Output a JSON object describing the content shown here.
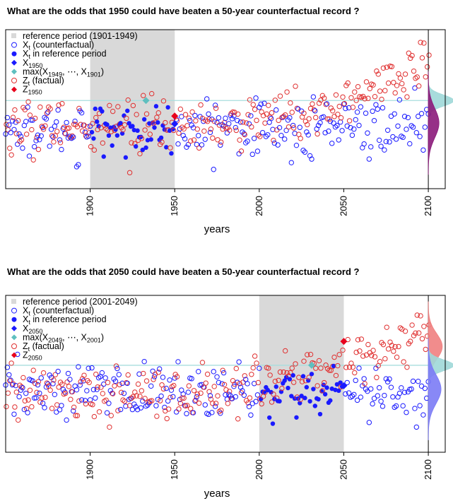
{
  "chart_data": [
    {
      "type": "scatter",
      "title": "What are the odds that 1950 could have beaten a 50-year counterfactual record ?",
      "xlabel": "years",
      "ylabel": "",
      "xlim": [
        1850,
        2110
      ],
      "ylim": [
        -3.2,
        6.0
      ],
      "x_ticks": [
        1900,
        1950,
        2000,
        2050,
        2100
      ],
      "reference_period": [
        1901,
        1949
      ],
      "event_year": 1950,
      "record_level": 1.9,
      "record_year": 1933,
      "x_event": 0.55,
      "z_event": 1.0,
      "legend_position": "top-left",
      "legend": {
        "ref": "reference period (1901-1949)",
        "xcf": "X",
        "xcf_sub": "t",
        "xcf_rest": " (counterfactual)",
        "xref": "X",
        "xref_sub": "t",
        "xref_rest": " in reference period",
        "xev": "X",
        "xev_sub": "1950",
        "mx_pre": "max(X",
        "mx_sub1": "1949",
        "mx_mid": ", ⋯, X",
        "mx_sub2": "1901",
        "mx_post": ")",
        "zf": "Z",
        "zf_sub": "t",
        "zf_rest": " (factual)",
        "zev": "Z",
        "zev_sub": "1950"
      },
      "densities": [
        {
          "name": "max",
          "color": "#9fd8d8",
          "mean": 1.9,
          "sd": 0.32,
          "scale": 1.0
        },
        {
          "name": "factual",
          "color": "#8b1a7a",
          "mean": 0.6,
          "sd": 0.85,
          "scale": 0.42
        }
      ],
      "colors": {
        "counterfactual": "#1a1aff",
        "factual": "#e03030",
        "event": "#e8001c",
        "record": "#5fbfbf",
        "band": "#d9d9d9"
      }
    },
    {
      "type": "scatter",
      "title": "What are the odds that 2050 could have beaten a 50-year counterfactual record ?",
      "xlabel": "years",
      "ylabel": "",
      "xlim": [
        1850,
        2110
      ],
      "ylim": [
        -3.2,
        6.0
      ],
      "x_ticks": [
        1900,
        1950,
        2000,
        2050,
        2100
      ],
      "reference_period": [
        2001,
        2049
      ],
      "event_year": 2050,
      "record_level": 1.9,
      "record_year": 2031,
      "x_event": 0.7,
      "z_event": 3.3,
      "legend_position": "top-left",
      "legend": {
        "ref": "reference period (2001-2049)",
        "xcf": "X",
        "xcf_sub": "t",
        "xcf_rest": " (counterfactual)",
        "xref": "X",
        "xref_sub": "t",
        "xref_rest": " in reference period",
        "xev": "X",
        "xev_sub": "2050",
        "mx_pre": "max(X",
        "mx_sub1": "2049",
        "mx_mid": ", ⋯, X",
        "mx_sub2": "2001",
        "mx_post": ")",
        "zf": "Z",
        "zf_sub": "t",
        "zf_rest": " (factual)",
        "zev": "Z",
        "zev_sub": "2050"
      },
      "densities": [
        {
          "name": "factual",
          "color": "#f08080",
          "mean": 3.0,
          "sd": 0.75,
          "scale": 0.55
        },
        {
          "name": "max",
          "color": "#9fd8d8",
          "mean": 1.9,
          "sd": 0.32,
          "scale": 1.0
        },
        {
          "name": "counterfactual",
          "color": "#7b7bf5",
          "mean": 0.5,
          "sd": 0.85,
          "scale": 0.5
        }
      ],
      "colors": {
        "counterfactual": "#1a1aff",
        "factual": "#e03030",
        "event": "#e8001c",
        "record": "#5fbfbf",
        "band": "#d9d9d9"
      }
    }
  ]
}
